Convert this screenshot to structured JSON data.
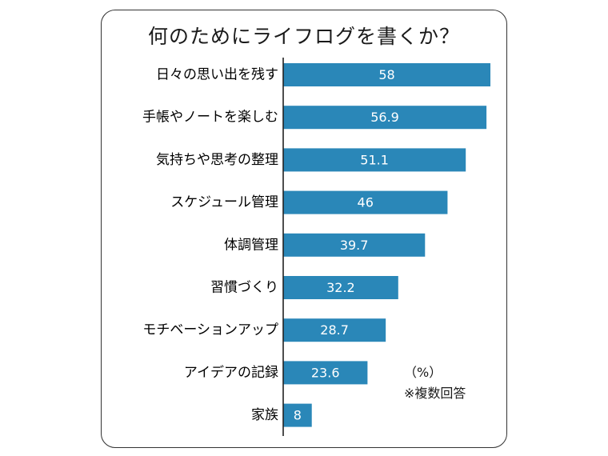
{
  "title": "何のためにライフログを書くか？",
  "unit_label": "（%）",
  "note": "※複数回答",
  "colors": {
    "bar": "#2a87b8",
    "axis": "#222222",
    "frame": "#333333"
  },
  "chart_data": {
    "type": "bar",
    "orientation": "horizontal",
    "title": "何のためにライフログを書くか？",
    "categories": [
      "日々の思い出を残す",
      "手帳やノートを楽しむ",
      "気持ちや思考の整理",
      "スケジュール管理",
      "体調管理",
      "習慣づくり",
      "モチベーションアップ",
      "アイデアの記録",
      "家族"
    ],
    "values": [
      58,
      56.9,
      51.1,
      46,
      39.7,
      32.2,
      28.7,
      23.6,
      8
    ],
    "value_labels": [
      "58",
      "56.9",
      "51.1",
      "46",
      "39.7",
      "32.2",
      "28.7",
      "23.6",
      "8"
    ],
    "xlim": [
      0,
      58
    ],
    "unit": "%",
    "grid": false
  }
}
